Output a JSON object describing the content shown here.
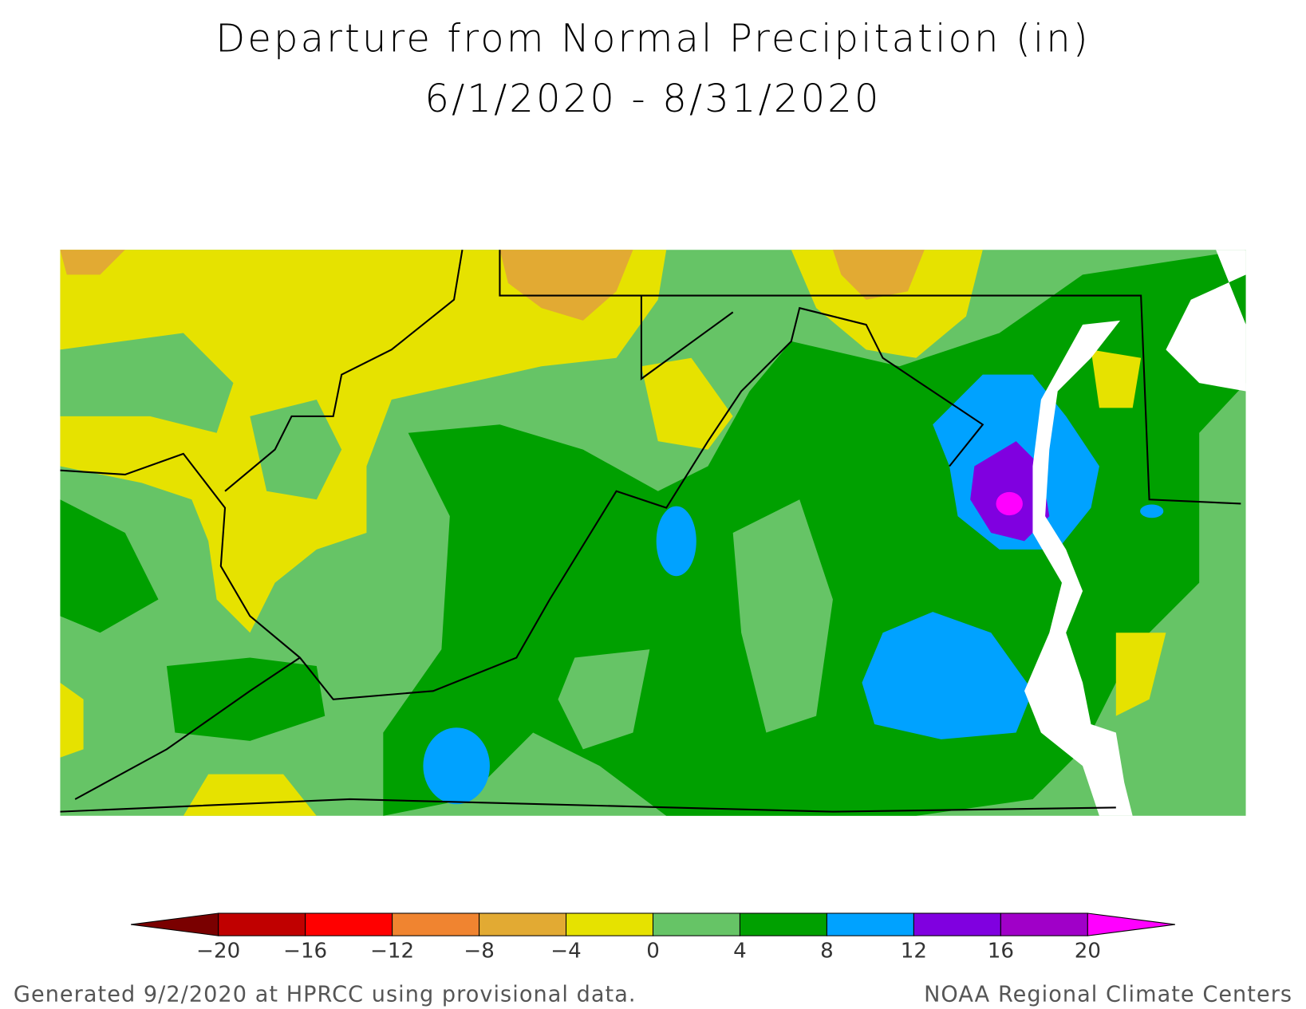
{
  "header": {
    "title": "Departure from Normal Precipitation (in)",
    "subtitle": "6/1/2020 - 8/31/2020"
  },
  "colorbar": {
    "ticks": [
      {
        "value": -20,
        "label": "−20"
      },
      {
        "value": -16,
        "label": "−16"
      },
      {
        "value": -12,
        "label": "−12"
      },
      {
        "value": -8,
        "label": "−8"
      },
      {
        "value": -4,
        "label": "−4"
      },
      0,
      4,
      8,
      12,
      16,
      20
    ],
    "colors": [
      "#7a0000",
      "#c00000",
      "#ff0000",
      "#f08430",
      "#e2aa33",
      "#e6e200",
      "#66c466",
      "#00a000",
      "#00a2ff",
      "#8000e0",
      "#a000c8",
      "#ff00ff"
    ]
  },
  "footer": {
    "left": "Generated 9/2/2020 at HPRCC using provisional data.",
    "right": "NOAA Regional Climate Centers"
  }
}
